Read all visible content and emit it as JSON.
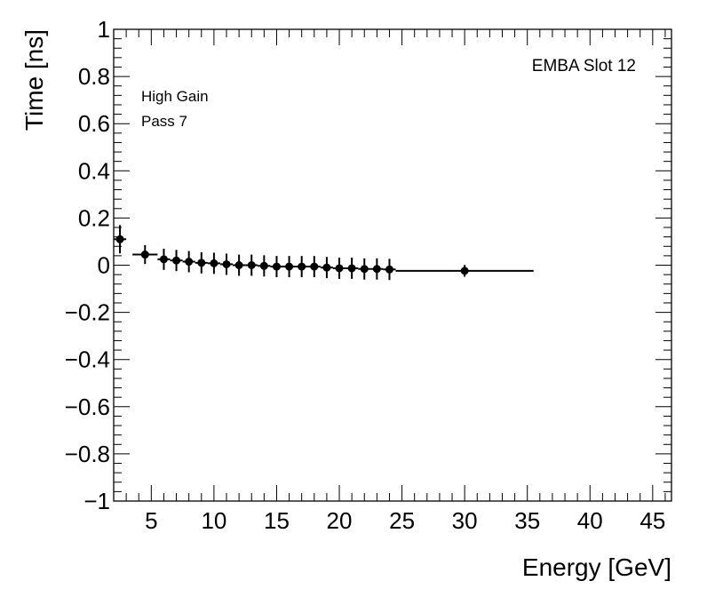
{
  "chart_data": {
    "type": "scatter",
    "xlabel": "Energy [GeV]",
    "ylabel": "Time [ns]",
    "xlim": [
      2,
      46.5
    ],
    "ylim": [
      -1,
      1
    ],
    "grid": false,
    "x_ticks": [
      5,
      10,
      15,
      20,
      25,
      30,
      35,
      40,
      45
    ],
    "y_ticks": [
      -1,
      -0.8,
      -0.6,
      -0.4,
      -0.2,
      0,
      0.2,
      0.4,
      0.6,
      0.8,
      1
    ],
    "x_tick_labels": [
      "5",
      "10",
      "15",
      "20",
      "25",
      "30",
      "35",
      "40",
      "45"
    ],
    "y_tick_labels": [
      "−1",
      "−0.8",
      "−0.6",
      "−0.4",
      "−0.2",
      "0",
      "0.2",
      "0.4",
      "0.6",
      "0.8",
      "1"
    ],
    "annotations": {
      "slot": "EMBA Slot 12",
      "gain": "High Gain",
      "pass": "Pass 7"
    },
    "series": [
      {
        "marker": "circle",
        "color": "#000000",
        "points": [
          {
            "x": 2.5,
            "y": 0.11,
            "xlo": 2.0,
            "xhi": 3.0,
            "yerr": 0.06
          },
          {
            "x": 4.5,
            "y": 0.045,
            "xlo": 3.5,
            "xhi": 5.5,
            "yerr": 0.04
          },
          {
            "x": 6.0,
            "y": 0.025,
            "xlo": 5.5,
            "xhi": 6.5,
            "yerr": 0.045
          },
          {
            "x": 7.0,
            "y": 0.02,
            "xlo": 6.5,
            "xhi": 7.5,
            "yerr": 0.045
          },
          {
            "x": 8.0,
            "y": 0.015,
            "xlo": 7.5,
            "xhi": 8.5,
            "yerr": 0.045
          },
          {
            "x": 9.0,
            "y": 0.01,
            "xlo": 8.5,
            "xhi": 9.5,
            "yerr": 0.045
          },
          {
            "x": 10.0,
            "y": 0.008,
            "xlo": 9.5,
            "xhi": 10.5,
            "yerr": 0.045
          },
          {
            "x": 11.0,
            "y": 0.004,
            "xlo": 10.5,
            "xhi": 11.5,
            "yerr": 0.045
          },
          {
            "x": 12.0,
            "y": 0.0,
            "xlo": 11.5,
            "xhi": 12.5,
            "yerr": 0.045
          },
          {
            "x": 13.0,
            "y": 0.0,
            "xlo": 12.5,
            "xhi": 13.5,
            "yerr": 0.045
          },
          {
            "x": 14.0,
            "y": -0.003,
            "xlo": 13.5,
            "xhi": 14.5,
            "yerr": 0.045
          },
          {
            "x": 15.0,
            "y": -0.006,
            "xlo": 14.5,
            "xhi": 15.5,
            "yerr": 0.045
          },
          {
            "x": 16.0,
            "y": -0.006,
            "xlo": 15.5,
            "xhi": 16.5,
            "yerr": 0.045
          },
          {
            "x": 17.0,
            "y": -0.006,
            "xlo": 16.5,
            "xhi": 17.5,
            "yerr": 0.045
          },
          {
            "x": 18.0,
            "y": -0.006,
            "xlo": 17.5,
            "xhi": 18.5,
            "yerr": 0.045
          },
          {
            "x": 19.0,
            "y": -0.01,
            "xlo": 18.5,
            "xhi": 19.5,
            "yerr": 0.045
          },
          {
            "x": 20.0,
            "y": -0.013,
            "xlo": 19.5,
            "xhi": 20.5,
            "yerr": 0.045
          },
          {
            "x": 21.0,
            "y": -0.013,
            "xlo": 20.5,
            "xhi": 21.5,
            "yerr": 0.045
          },
          {
            "x": 22.0,
            "y": -0.016,
            "xlo": 21.5,
            "xhi": 22.5,
            "yerr": 0.045
          },
          {
            "x": 23.0,
            "y": -0.016,
            "xlo": 22.5,
            "xhi": 23.5,
            "yerr": 0.045
          },
          {
            "x": 24.0,
            "y": -0.018,
            "xlo": 23.5,
            "xhi": 24.5,
            "yerr": 0.045
          },
          {
            "x": 30.0,
            "y": -0.024,
            "xlo": 24.5,
            "xhi": 35.5,
            "yerr": 0.025
          }
        ]
      }
    ]
  }
}
